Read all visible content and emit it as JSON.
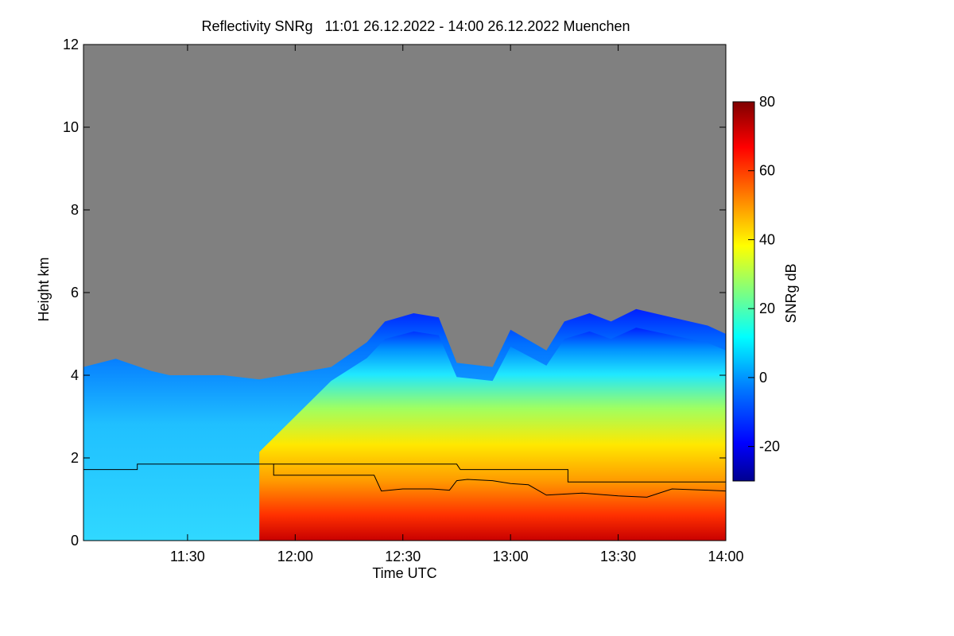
{
  "chart_data": {
    "type": "heatmap",
    "title": "Reflectivity SNRg   11:01 26.12.2022 - 14:00 26.12.2022 Muenchen",
    "xlabel": "Time UTC",
    "ylabel": "Height km",
    "xlim": [
      "11:01",
      "14:00"
    ],
    "ylim": [
      0,
      12
    ],
    "x_ticks": [
      "11:30",
      "12:00",
      "12:30",
      "13:00",
      "13:30",
      "14:00"
    ],
    "y_ticks": [
      0,
      2,
      4,
      6,
      8,
      10,
      12
    ],
    "background_color": "#808080",
    "colorbar": {
      "label": "SNRg dB",
      "range": [
        -30,
        80
      ],
      "ticks": [
        -20,
        0,
        20,
        40,
        60,
        80
      ],
      "colors": [
        "#00008f",
        "#0000ff",
        "#007fff",
        "#00ffff",
        "#7fff7f",
        "#ffff00",
        "#ff7f00",
        "#ff0000",
        "#7f0000"
      ]
    },
    "signal_top_km": [
      {
        "t": "11:01",
        "h": 4.2
      },
      {
        "t": "11:10",
        "h": 4.4
      },
      {
        "t": "11:20",
        "h": 4.1
      },
      {
        "t": "11:25",
        "h": 4.0
      },
      {
        "t": "11:40",
        "h": 4.0
      },
      {
        "t": "11:50",
        "h": 3.9
      },
      {
        "t": "12:10",
        "h": 4.2
      },
      {
        "t": "12:20",
        "h": 4.8
      },
      {
        "t": "12:25",
        "h": 5.3
      },
      {
        "t": "12:33",
        "h": 5.5
      },
      {
        "t": "12:40",
        "h": 5.4
      },
      {
        "t": "12:45",
        "h": 4.3
      },
      {
        "t": "12:55",
        "h": 4.2
      },
      {
        "t": "13:00",
        "h": 5.1
      },
      {
        "t": "13:10",
        "h": 4.6
      },
      {
        "t": "13:15",
        "h": 5.3
      },
      {
        "t": "13:22",
        "h": 5.5
      },
      {
        "t": "13:28",
        "h": 5.3
      },
      {
        "t": "13:35",
        "h": 5.6
      },
      {
        "t": "13:45",
        "h": 5.4
      },
      {
        "t": "13:55",
        "h": 5.2
      },
      {
        "t": "14:00",
        "h": 5.0
      }
    ],
    "line_series": [
      {
        "color": "#000000",
        "points": [
          {
            "t": "11:01",
            "h": 1.72
          },
          {
            "t": "11:16",
            "h": 1.72
          },
          {
            "t": "11:16",
            "h": 1.85
          },
          {
            "t": "11:54",
            "h": 1.85
          },
          {
            "t": "11:54",
            "h": 1.58
          },
          {
            "t": "12:22",
            "h": 1.58
          },
          {
            "t": "12:24",
            "h": 1.2
          },
          {
            "t": "12:30",
            "h": 1.25
          },
          {
            "t": "12:38",
            "h": 1.25
          },
          {
            "t": "12:43",
            "h": 1.22
          },
          {
            "t": "12:45",
            "h": 1.45
          },
          {
            "t": "12:48",
            "h": 1.48
          },
          {
            "t": "12:55",
            "h": 1.45
          },
          {
            "t": "13:00",
            "h": 1.38
          },
          {
            "t": "13:05",
            "h": 1.35
          },
          {
            "t": "13:10",
            "h": 1.1
          },
          {
            "t": "13:20",
            "h": 1.15
          },
          {
            "t": "13:30",
            "h": 1.08
          },
          {
            "t": "13:38",
            "h": 1.05
          },
          {
            "t": "13:45",
            "h": 1.25
          },
          {
            "t": "13:55",
            "h": 1.22
          },
          {
            "t": "14:00",
            "h": 1.2
          }
        ]
      },
      {
        "color": "#000000",
        "points": [
          {
            "t": "11:54",
            "h": 1.85
          },
          {
            "t": "12:45",
            "h": 1.85
          },
          {
            "t": "12:46",
            "h": 1.72
          },
          {
            "t": "13:16",
            "h": 1.72
          },
          {
            "t": "13:16",
            "h": 1.42
          },
          {
            "t": "14:00",
            "h": 1.42
          }
        ]
      }
    ]
  }
}
